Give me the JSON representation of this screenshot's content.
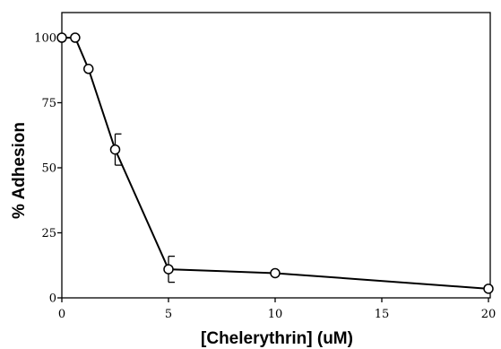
{
  "chart_data": {
    "type": "line",
    "title": "",
    "xlabel": "[Chelerythrin] (uM)",
    "ylabel": "% Adhesion",
    "xlim": [
      0,
      20
    ],
    "ylim": [
      0,
      110
    ],
    "x_ticks": [
      0,
      5,
      10,
      15,
      20
    ],
    "y_ticks": [
      0,
      25,
      50,
      75,
      100
    ],
    "grid": false,
    "legend": "none",
    "marker": "open-circle",
    "series": [
      {
        "x": [
          0,
          0.625,
          1.25,
          2.5,
          5,
          10,
          20
        ],
        "y": [
          100,
          100,
          88,
          57,
          11,
          9.5,
          3.5
        ],
        "error_upper": [
          0,
          0,
          0,
          6,
          5,
          0,
          0
        ],
        "error_lower": [
          0,
          0,
          0,
          6,
          5,
          0,
          0
        ]
      }
    ]
  }
}
